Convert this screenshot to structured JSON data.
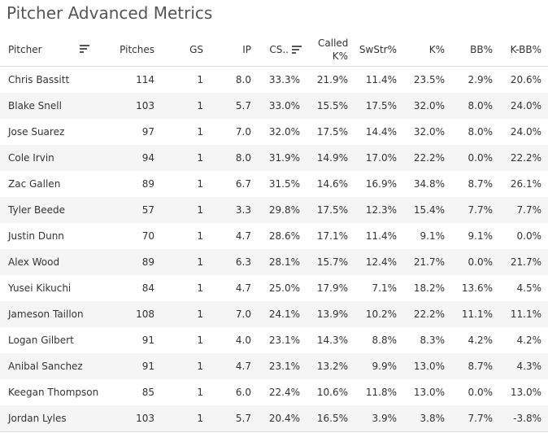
{
  "header": {
    "title": "Pitcher Advanced Metrics"
  },
  "table": {
    "columns": [
      "Pitcher",
      "Pitches",
      "GS",
      "IP",
      "CS..",
      "Called K%",
      "SwStr%",
      "K%",
      "BB%",
      "K-BB%"
    ],
    "rows": [
      [
        "Chris Bassitt",
        "114",
        "1",
        "8.0",
        "33.3%",
        "21.9%",
        "11.4%",
        "23.5%",
        "2.9%",
        "20.6%"
      ],
      [
        "Blake Snell",
        "103",
        "1",
        "5.7",
        "33.0%",
        "15.5%",
        "17.5%",
        "32.0%",
        "8.0%",
        "24.0%"
      ],
      [
        "Jose Suarez",
        "97",
        "1",
        "7.0",
        "32.0%",
        "17.5%",
        "14.4%",
        "32.0%",
        "8.0%",
        "24.0%"
      ],
      [
        "Cole Irvin",
        "94",
        "1",
        "8.0",
        "31.9%",
        "14.9%",
        "17.0%",
        "22.2%",
        "0.0%",
        "22.2%"
      ],
      [
        "Zac Gallen",
        "89",
        "1",
        "6.7",
        "31.5%",
        "14.6%",
        "16.9%",
        "34.8%",
        "8.7%",
        "26.1%"
      ],
      [
        "Tyler Beede",
        "57",
        "1",
        "3.3",
        "29.8%",
        "17.5%",
        "12.3%",
        "15.4%",
        "7.7%",
        "7.7%"
      ],
      [
        "Justin Dunn",
        "70",
        "1",
        "4.7",
        "28.6%",
        "17.1%",
        "11.4%",
        "9.1%",
        "9.1%",
        "0.0%"
      ],
      [
        "Alex Wood",
        "89",
        "1",
        "6.3",
        "28.1%",
        "15.7%",
        "12.4%",
        "21.7%",
        "0.0%",
        "21.7%"
      ],
      [
        "Yusei Kikuchi",
        "84",
        "1",
        "4.7",
        "25.0%",
        "17.9%",
        "7.1%",
        "18.2%",
        "13.6%",
        "4.5%"
      ],
      [
        "Jameson Taillon",
        "108",
        "1",
        "7.0",
        "24.1%",
        "13.9%",
        "10.2%",
        "22.2%",
        "11.1%",
        "11.1%"
      ],
      [
        "Logan Gilbert",
        "91",
        "1",
        "4.0",
        "23.1%",
        "14.3%",
        "8.8%",
        "8.3%",
        "4.2%",
        "4.2%"
      ],
      [
        "Anibal Sanchez",
        "91",
        "1",
        "4.7",
        "23.1%",
        "13.2%",
        "9.9%",
        "13.0%",
        "8.7%",
        "4.3%"
      ],
      [
        "Keegan Thompson",
        "85",
        "1",
        "6.0",
        "22.4%",
        "10.6%",
        "11.8%",
        "13.0%",
        "0.0%",
        "13.0%"
      ],
      [
        "Jordan Lyles",
        "103",
        "1",
        "5.7",
        "20.4%",
        "16.5%",
        "3.9%",
        "3.8%",
        "7.7%",
        "-3.8%"
      ]
    ]
  }
}
